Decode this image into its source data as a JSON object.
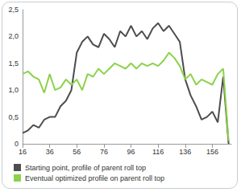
{
  "chart_data": {
    "type": "line",
    "x": [
      16,
      20,
      24,
      28,
      32,
      36,
      40,
      44,
      48,
      52,
      56,
      60,
      64,
      68,
      72,
      76,
      80,
      84,
      88,
      92,
      96,
      100,
      104,
      108,
      112,
      116,
      120,
      124,
      128,
      132,
      136,
      140,
      144,
      148,
      152,
      156,
      160,
      164,
      168
    ],
    "series": [
      {
        "name": "Starting point, profile of parent roll top",
        "color": "#4d4d4d",
        "values": [
          0.2,
          0.25,
          0.35,
          0.3,
          0.45,
          0.5,
          0.5,
          0.7,
          0.8,
          1.0,
          1.7,
          1.9,
          2.0,
          1.85,
          1.8,
          2.05,
          1.95,
          1.8,
          2.1,
          2.0,
          2.2,
          2.0,
          2.1,
          1.95,
          2.15,
          2.25,
          2.1,
          2.2,
          2.05,
          1.9,
          1.2,
          0.9,
          0.7,
          0.45,
          0.5,
          0.6,
          0.4,
          1.25,
          0
        ]
      },
      {
        "name": "Eventual optimized profile on parent roll top",
        "color": "#8cd24a",
        "values": [
          1.3,
          1.35,
          1.25,
          1.2,
          0.95,
          1.3,
          1.0,
          1.05,
          1.2,
          1.1,
          1.2,
          1.0,
          1.3,
          1.25,
          1.4,
          1.3,
          1.4,
          1.5,
          1.45,
          1.4,
          1.5,
          1.4,
          1.5,
          1.45,
          1.5,
          1.45,
          1.55,
          1.7,
          1.6,
          1.45,
          1.2,
          1.3,
          1.1,
          1.2,
          1.15,
          1.1,
          1.3,
          1.4,
          0.05
        ]
      }
    ],
    "xlim": [
      16,
      170
    ],
    "xticks": [
      16,
      36,
      56,
      76,
      96,
      116,
      136,
      156
    ],
    "ylim": [
      0,
      2.5
    ],
    "yticks": [
      0,
      {
        "value": 0.5,
        "label": "0,5"
      },
      {
        "value": 1,
        "label": "1,0"
      },
      {
        "value": 1.5,
        "label": "1,5"
      },
      {
        "value": 2,
        "label": "2,0"
      },
      {
        "value": 2.5,
        "label": "2,5"
      }
    ],
    "grid": false,
    "legend": "bottom-left",
    "marker": "none",
    "line_style": "solid"
  }
}
